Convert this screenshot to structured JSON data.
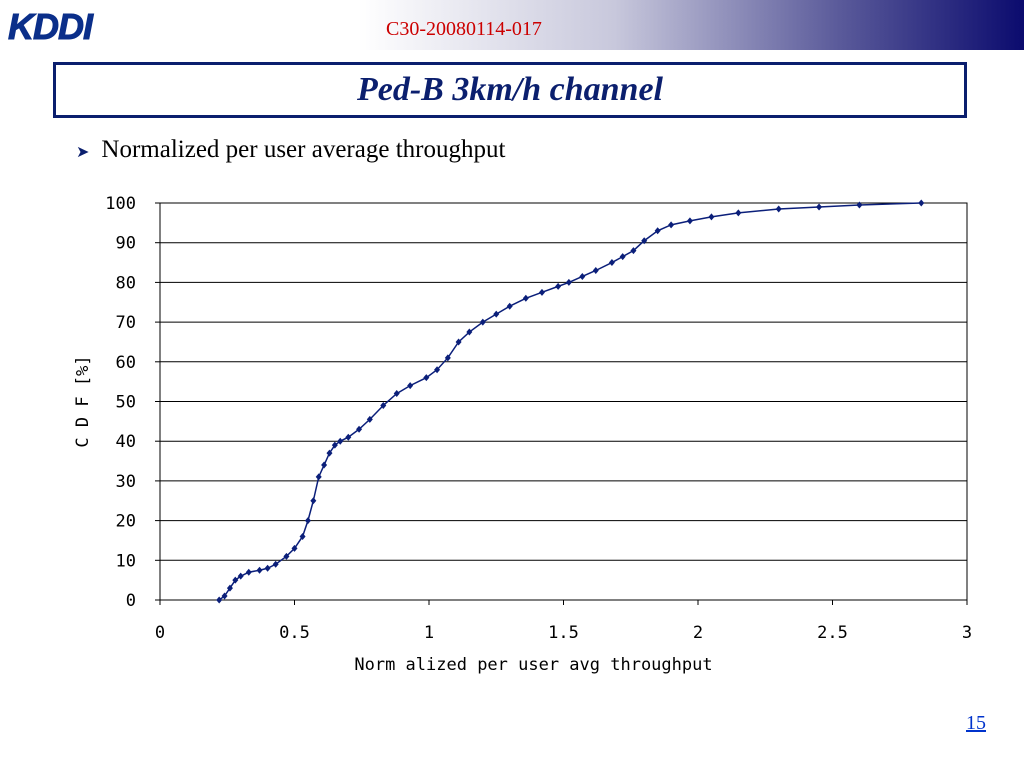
{
  "header": {
    "logo_text": "KDDI",
    "doc_id": "C30-20080114-017"
  },
  "slide": {
    "title": "Ped-B 3km/h channel",
    "bullet": "Normalized per user average throughput",
    "page_number": "15"
  },
  "colors": {
    "accent": "#0b1f6e",
    "series": "#0b1f7a",
    "doc_id": "#cc0000",
    "page_link": "#0033cc"
  },
  "chart_data": {
    "type": "line",
    "title": "",
    "xlabel": "Norm alized per user avg throughput",
    "ylabel": "C D F [%]",
    "xlim": [
      0,
      3
    ],
    "ylim": [
      0,
      100
    ],
    "x_ticks": [
      "0",
      "0.5",
      "1",
      "1.5",
      "2",
      "2.5",
      "3"
    ],
    "y_ticks": [
      "0",
      "10",
      "20",
      "30",
      "40",
      "50",
      "60",
      "70",
      "80",
      "90",
      "100"
    ],
    "grid": "horizontal",
    "legend": "none",
    "series": [
      {
        "x": [
          0.22,
          0.24,
          0.26,
          0.28,
          0.3,
          0.33,
          0.37,
          0.4,
          0.43,
          0.47,
          0.5,
          0.53,
          0.55,
          0.57,
          0.59,
          0.61,
          0.63,
          0.65,
          0.67,
          0.7,
          0.74,
          0.78,
          0.83,
          0.88,
          0.93,
          0.99,
          1.03,
          1.07,
          1.11,
          1.15,
          1.2,
          1.25,
          1.3,
          1.36,
          1.42,
          1.48,
          1.52,
          1.57,
          1.62,
          1.68,
          1.72,
          1.76,
          1.8,
          1.85,
          1.9,
          1.97,
          2.05,
          2.15,
          2.3,
          2.45,
          2.6,
          2.83
        ],
        "y": [
          0,
          1,
          3,
          5,
          6,
          7,
          7.5,
          8,
          9,
          11,
          13,
          16,
          20,
          25,
          31,
          34,
          37,
          39,
          40,
          41,
          43,
          45.5,
          49,
          52,
          54,
          56,
          58,
          61,
          65,
          67.5,
          70,
          72,
          74,
          76,
          77.5,
          79,
          80,
          81.5,
          83,
          85,
          86.5,
          88,
          90.5,
          93,
          94.5,
          95.5,
          96.5,
          97.5,
          98.5,
          99,
          99.5,
          100
        ]
      }
    ]
  }
}
